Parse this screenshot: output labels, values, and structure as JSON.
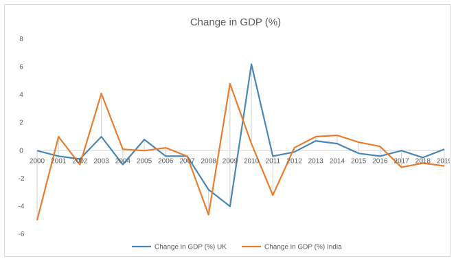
{
  "chart_data": {
    "type": "line",
    "title": "Change in GDP (%)",
    "xlabel": "",
    "ylabel": "",
    "categories": [
      "2000",
      "2001",
      "2002",
      "2003",
      "2004",
      "2005",
      "2006",
      "2007",
      "2008",
      "2009",
      "2010",
      "2011",
      "2012",
      "2013",
      "2014",
      "2015",
      "2016",
      "2017",
      "2018",
      "2019"
    ],
    "ylim": [
      -6,
      8
    ],
    "yticks": [
      -6,
      -4,
      -2,
      0,
      2,
      4,
      6,
      8
    ],
    "grid": false,
    "legend": "bottom",
    "series": [
      {
        "name": "Change in GDP (%) UK",
        "color": "#4a86b4",
        "values": [
          0.0,
          -0.4,
          -0.6,
          1.0,
          -1.0,
          0.8,
          -0.4,
          -0.4,
          -2.8,
          -4.0,
          6.2,
          -0.4,
          -0.1,
          0.7,
          0.5,
          -0.2,
          -0.4,
          -0.0,
          -0.5,
          0.1
        ]
      },
      {
        "name": "Change in GDP (%) India",
        "color": "#e87d2c",
        "values": [
          -5.0,
          1.0,
          -1.0,
          4.1,
          0.1,
          0.0,
          0.2,
          -0.4,
          -4.6,
          4.8,
          0.5,
          -3.2,
          0.2,
          1.0,
          1.1,
          0.6,
          0.3,
          -1.2,
          -0.9,
          -1.1
        ]
      }
    ]
  }
}
